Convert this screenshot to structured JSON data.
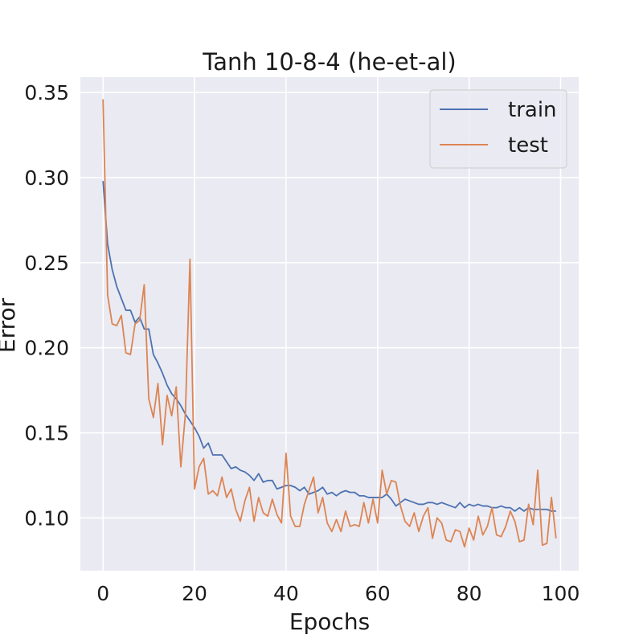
{
  "chart_data": {
    "type": "line",
    "title": "Tanh 10-8-4 (he-et-al)",
    "xlabel": "Epochs",
    "ylabel": "Error",
    "xlim": [
      -4.95,
      103.95
    ],
    "ylim": [
      0.069,
      0.359
    ],
    "xticks": [
      0,
      20,
      40,
      60,
      80,
      100
    ],
    "yticks": [
      0.1,
      0.15,
      0.2,
      0.25,
      0.3,
      0.35
    ],
    "xtick_labels": [
      "0",
      "20",
      "40",
      "60",
      "80",
      "100"
    ],
    "ytick_labels": [
      "0.10",
      "0.15",
      "0.20",
      "0.25",
      "0.30",
      "0.35"
    ],
    "grid": true,
    "legend": "upper-right",
    "background": "#eaeaf2",
    "series": [
      {
        "name": "train",
        "color": "#4c72b0",
        "values": [
          0.298,
          0.261,
          0.246,
          0.236,
          0.229,
          0.222,
          0.222,
          0.215,
          0.218,
          0.211,
          0.211,
          0.196,
          0.191,
          0.185,
          0.178,
          0.173,
          0.17,
          0.166,
          0.161,
          0.157,
          0.153,
          0.148,
          0.141,
          0.144,
          0.137,
          0.137,
          0.137,
          0.133,
          0.129,
          0.13,
          0.128,
          0.127,
          0.125,
          0.122,
          0.126,
          0.121,
          0.122,
          0.122,
          0.117,
          0.118,
          0.119,
          0.119,
          0.118,
          0.116,
          0.118,
          0.114,
          0.115,
          0.116,
          0.118,
          0.114,
          0.115,
          0.113,
          0.115,
          0.116,
          0.115,
          0.115,
          0.113,
          0.113,
          0.112,
          0.112,
          0.112,
          0.112,
          0.114,
          0.111,
          0.107,
          0.109,
          0.111,
          0.11,
          0.109,
          0.108,
          0.108,
          0.109,
          0.109,
          0.108,
          0.109,
          0.108,
          0.107,
          0.106,
          0.109,
          0.106,
          0.108,
          0.107,
          0.108,
          0.107,
          0.107,
          0.106,
          0.106,
          0.107,
          0.106,
          0.106,
          0.104,
          0.106,
          0.104,
          0.106,
          0.105,
          0.105,
          0.105,
          0.105,
          0.104,
          0.104
        ]
      },
      {
        "name": "test",
        "color": "#dd8452",
        "values": [
          0.346,
          0.231,
          0.214,
          0.213,
          0.219,
          0.197,
          0.196,
          0.214,
          0.216,
          0.237,
          0.17,
          0.159,
          0.179,
          0.143,
          0.172,
          0.16,
          0.177,
          0.13,
          0.161,
          0.252,
          0.117,
          0.13,
          0.135,
          0.114,
          0.116,
          0.113,
          0.124,
          0.112,
          0.117,
          0.105,
          0.098,
          0.11,
          0.118,
          0.098,
          0.112,
          0.103,
          0.101,
          0.111,
          0.102,
          0.097,
          0.138,
          0.101,
          0.095,
          0.095,
          0.108,
          0.116,
          0.124,
          0.103,
          0.112,
          0.097,
          0.092,
          0.099,
          0.092,
          0.104,
          0.095,
          0.096,
          0.095,
          0.109,
          0.097,
          0.111,
          0.097,
          0.128,
          0.114,
          0.122,
          0.121,
          0.107,
          0.098,
          0.095,
          0.103,
          0.092,
          0.101,
          0.106,
          0.088,
          0.1,
          0.097,
          0.087,
          0.086,
          0.093,
          0.092,
          0.083,
          0.094,
          0.087,
          0.101,
          0.09,
          0.095,
          0.106,
          0.09,
          0.089,
          0.095,
          0.104,
          0.098,
          0.086,
          0.087,
          0.108,
          0.096,
          0.128,
          0.084,
          0.085,
          0.112,
          0.088
        ]
      }
    ]
  }
}
